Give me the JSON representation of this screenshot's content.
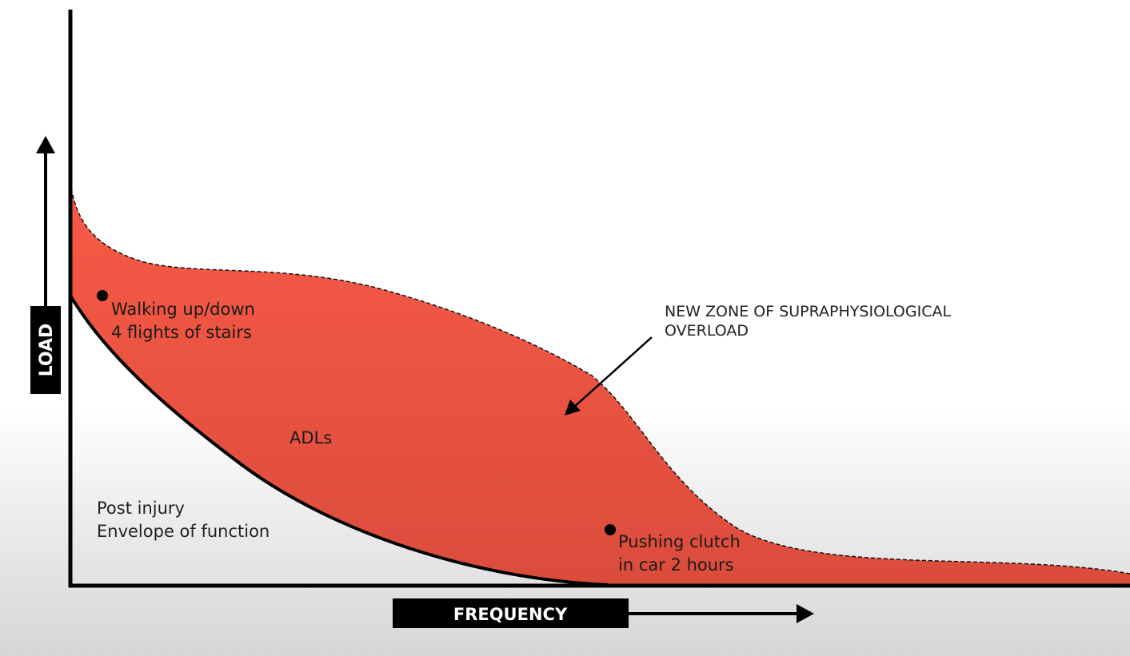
{
  "axes": {
    "y_label": "LOAD",
    "x_label": "FREQUENCY"
  },
  "points": {
    "stairs": {
      "line1": "Walking up/down",
      "line2": "4 flights of stairs"
    },
    "clutch": {
      "line1": "Pushing clutch",
      "line2": "in car 2 hours"
    }
  },
  "zones": {
    "adls": "ADLs",
    "post_injury": {
      "line1": "Post injury",
      "line2": "Envelope of function"
    },
    "overload": {
      "line1": "NEW ZONE OF SUPRAPHYSIOLOGICAL",
      "line2": "OVERLOAD"
    }
  },
  "colors": {
    "zone_fill": "#f85a47",
    "axis": "#000000",
    "label_box": "#000000"
  }
}
